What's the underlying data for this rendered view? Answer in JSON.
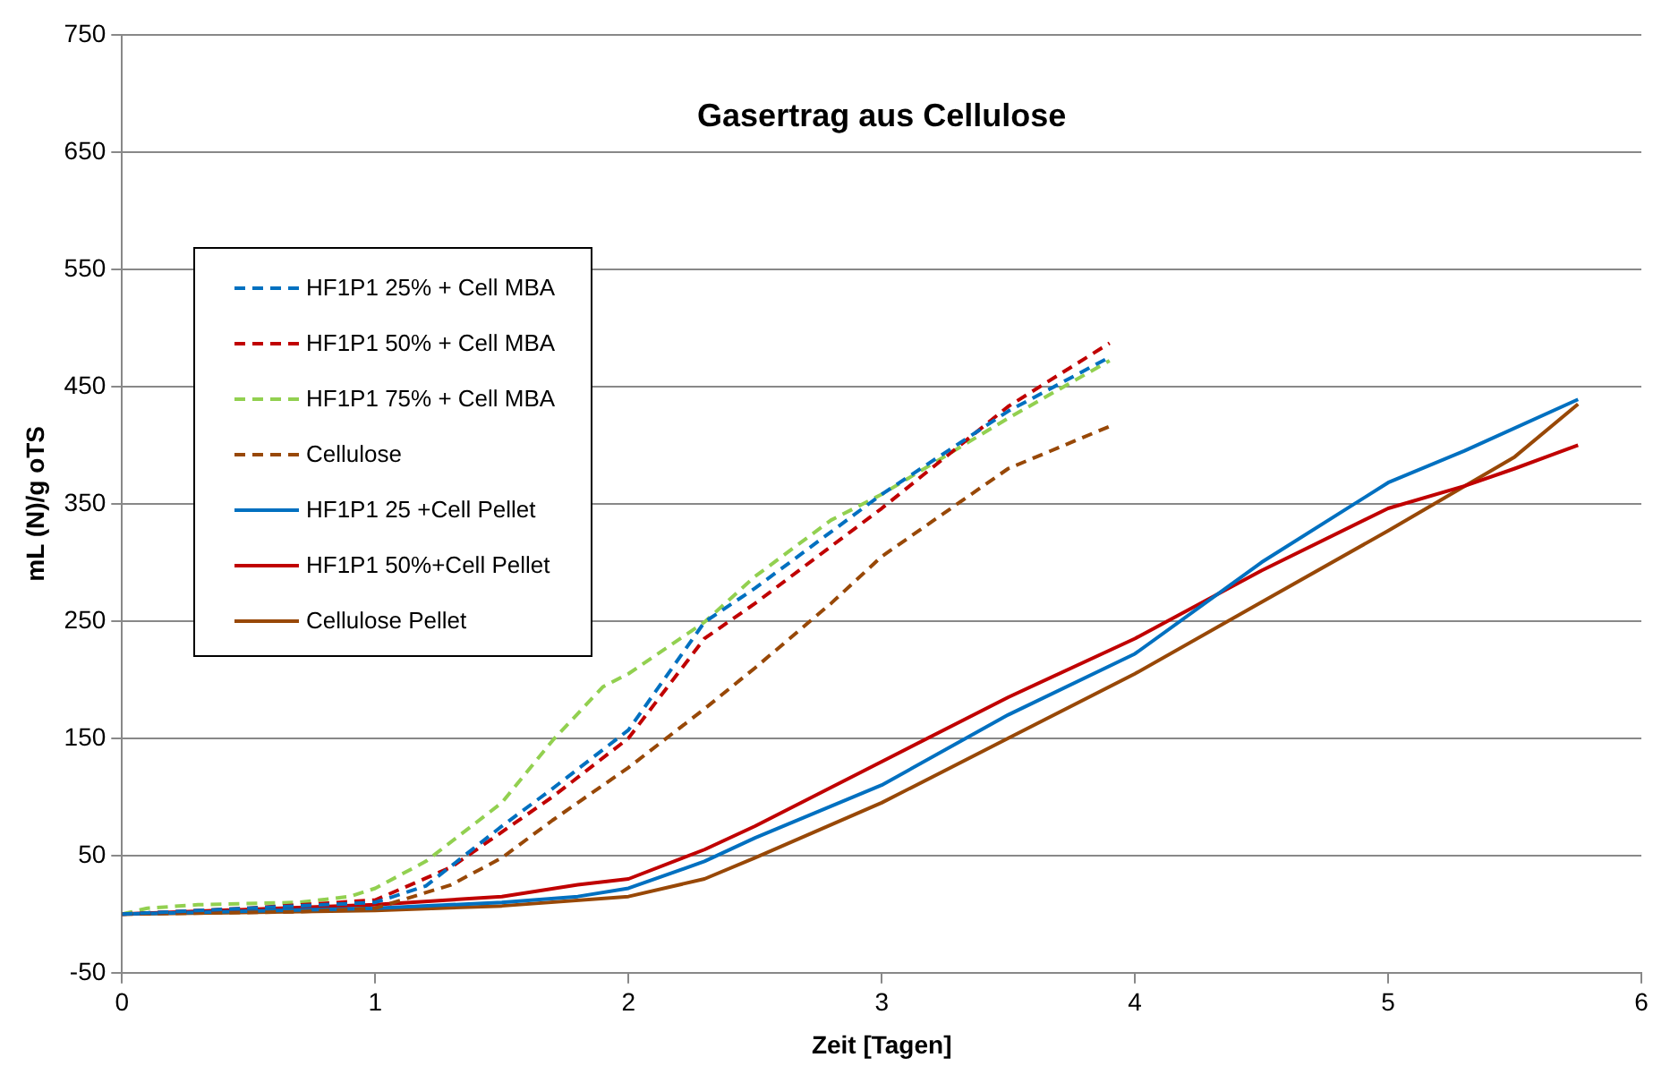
{
  "chart_data": {
    "type": "line",
    "title": "Gasertrag aus Cellulose",
    "xlabel": "Zeit [Tagen]",
    "ylabel": "mL (N)/g oTS",
    "xlim": [
      0,
      6
    ],
    "xticks": [
      0,
      1,
      2,
      3,
      4,
      5,
      6
    ],
    "ylim": [
      -50,
      750
    ],
    "yticks": [
      -50,
      50,
      150,
      250,
      350,
      450,
      550,
      650,
      750
    ],
    "grid": "y",
    "legend": "top left",
    "marker": "none",
    "series": [
      {
        "name": "HF1P1 25% + Cell MBA",
        "color": "#0070c0",
        "line_style": "dashed",
        "x": [
          0,
          0.5,
          1.0,
          1.2,
          1.5,
          1.7,
          2.0,
          2.3,
          2.5,
          3.0,
          3.5,
          3.9
        ],
        "values": [
          0,
          5,
          10,
          24,
          75,
          107,
          157,
          249,
          278,
          358,
          429,
          475
        ]
      },
      {
        "name": "HF1P1 50% + Cell MBA",
        "color": "#c00000",
        "line_style": "dashed",
        "x": [
          0,
          0.5,
          1.0,
          1.3,
          1.5,
          1.7,
          2.0,
          2.3,
          2.5,
          3.0,
          3.5,
          3.9
        ],
        "values": [
          0,
          5,
          12,
          40,
          70,
          100,
          150,
          235,
          265,
          346,
          433,
          487
        ]
      },
      {
        "name": "HF1P1 75% + Cell MBA",
        "color": "#92d050",
        "line_style": "dashed",
        "x": [
          0,
          0.1,
          0.3,
          0.7,
          0.9,
          1.0,
          1.2,
          1.5,
          1.7,
          1.9,
          2.0,
          2.3,
          2.5,
          2.8,
          3.0,
          3.5,
          3.9
        ],
        "values": [
          0,
          5,
          8,
          10,
          15,
          22,
          45,
          95,
          148,
          194,
          205,
          249,
          288,
          336,
          358,
          423,
          472
        ]
      },
      {
        "name": "Cellulose",
        "color": "#984807",
        "line_style": "dashed",
        "x": [
          0,
          0.7,
          1.0,
          1.3,
          1.5,
          1.7,
          2.0,
          2.3,
          2.5,
          2.8,
          3.0,
          3.5,
          3.9
        ],
        "values": [
          0,
          2,
          5,
          25,
          48,
          80,
          125,
          175,
          210,
          265,
          305,
          380,
          416
        ]
      },
      {
        "name": "HF1P1 25 +Cell Pellet",
        "color": "#0070c0",
        "line_style": "solid",
        "x": [
          0,
          1.0,
          1.5,
          1.8,
          2.0,
          2.3,
          2.5,
          3.0,
          3.5,
          4.0,
          4.5,
          5.0,
          5.3,
          5.75
        ],
        "values": [
          0,
          5,
          10,
          15,
          22,
          45,
          65,
          110,
          170,
          222,
          300,
          368,
          395,
          439
        ]
      },
      {
        "name": "HF1P1 50%+Cell Pellet",
        "color": "#c00000",
        "line_style": "solid",
        "x": [
          0,
          1.0,
          1.5,
          1.8,
          2.0,
          2.3,
          2.5,
          3.0,
          3.5,
          4.0,
          4.5,
          5.0,
          5.3,
          5.5,
          5.75
        ],
        "values": [
          0,
          8,
          15,
          25,
          30,
          55,
          75,
          130,
          185,
          235,
          293,
          346,
          365,
          380,
          400
        ]
      },
      {
        "name": "Cellulose Pellet",
        "color": "#984807",
        "line_style": "solid",
        "x": [
          0,
          1.0,
          1.5,
          2.0,
          2.3,
          2.5,
          3.0,
          3.5,
          4.0,
          4.5,
          5.0,
          5.5,
          5.75
        ],
        "values": [
          0,
          3,
          7,
          15,
          30,
          48,
          95,
          150,
          205,
          266,
          327,
          390,
          435
        ]
      }
    ]
  }
}
